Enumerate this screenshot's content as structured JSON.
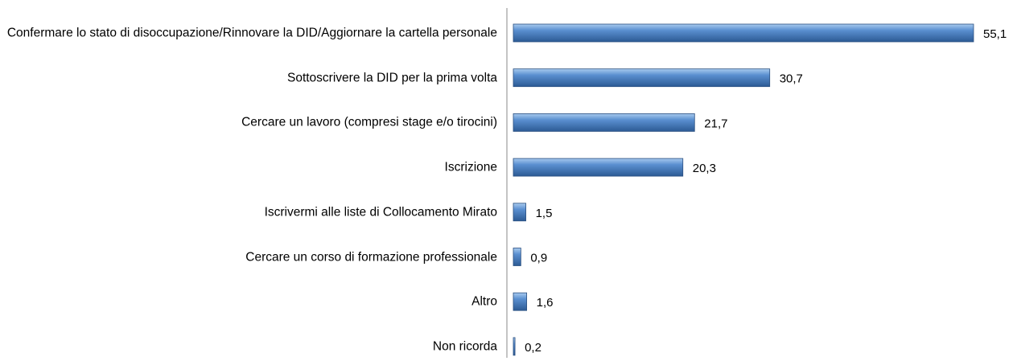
{
  "chart_data": {
    "type": "hbar",
    "categories": [
      "Confermare lo stato di disoccupazione/Rinnovare la DID/Aggiornare la cartella personale",
      "Sottoscrivere la DID per la prima volta",
      "Cercare un lavoro (compresi stage e/o tirocini)",
      "Iscrizione",
      "Iscrivermi alle liste di Collocamento Mirato",
      "Cercare un corso di formazione professionale",
      "Altro",
      "Non ricorda"
    ],
    "values": [
      55.1,
      30.7,
      21.7,
      20.3,
      1.5,
      0.9,
      1.6,
      0.2
    ],
    "value_labels": [
      "55,1",
      "30,7",
      "21,7",
      "20,3",
      "1,5",
      "0,9",
      "1,6",
      "0,2"
    ],
    "color": "#4f81bd"
  }
}
